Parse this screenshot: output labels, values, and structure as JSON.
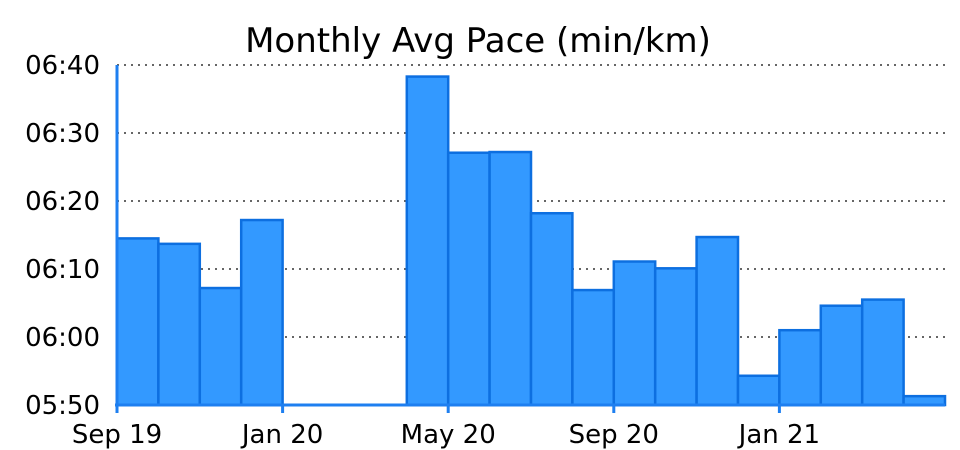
{
  "chart_data": {
    "type": "bar",
    "title": "Monthly Avg Pace (min/km)",
    "y_ticks": [
      "05:50",
      "06:00",
      "06:10",
      "06:20",
      "06:30",
      "06:40"
    ],
    "ylim_seconds": [
      350,
      400
    ],
    "x_ticks": [
      {
        "label": "Sep 19",
        "month": "Sep 19"
      },
      {
        "label": "Jan 20",
        "month": "Jan 20"
      },
      {
        "label": "May 20",
        "month": "May 20"
      },
      {
        "label": "Sep 20",
        "month": "Sep 20"
      },
      {
        "label": "Jan 21",
        "month": "Jan 21"
      }
    ],
    "categories": [
      "Sep 19",
      "Oct 19",
      "Nov 19",
      "Dec 19",
      "Jan 20",
      "Feb 20",
      "Mar 20",
      "Apr 20",
      "May 20",
      "Jun 20",
      "Jul 20",
      "Aug 20",
      "Sep 20",
      "Oct 20",
      "Nov 20",
      "Dec 20",
      "Jan 21",
      "Feb 21",
      "Mar 21",
      "Apr 21"
    ],
    "values": [
      "06:14.5",
      "06:13.7",
      "06:07.2",
      "06:17.2",
      null,
      null,
      null,
      "06:38.3",
      "06:27.1",
      "06:27.2",
      "06:18.2",
      "06:06.9",
      "06:11.1",
      "06:10.1",
      "06:14.7",
      "05:54.3",
      "06:01.0",
      "06:04.6",
      "06:05.5",
      "05:51.3"
    ],
    "values_seconds": [
      374.5,
      373.7,
      367.2,
      377.2,
      null,
      null,
      null,
      398.3,
      387.1,
      387.2,
      378.2,
      366.9,
      371.1,
      370.1,
      374.7,
      354.3,
      361.0,
      364.6,
      365.5,
      351.3
    ],
    "grid": "horizontal dotted",
    "colors": {
      "bar_fill": "#3399ff",
      "bar_edge": "#0d6fe0",
      "axis": "#1e7ff0"
    }
  }
}
